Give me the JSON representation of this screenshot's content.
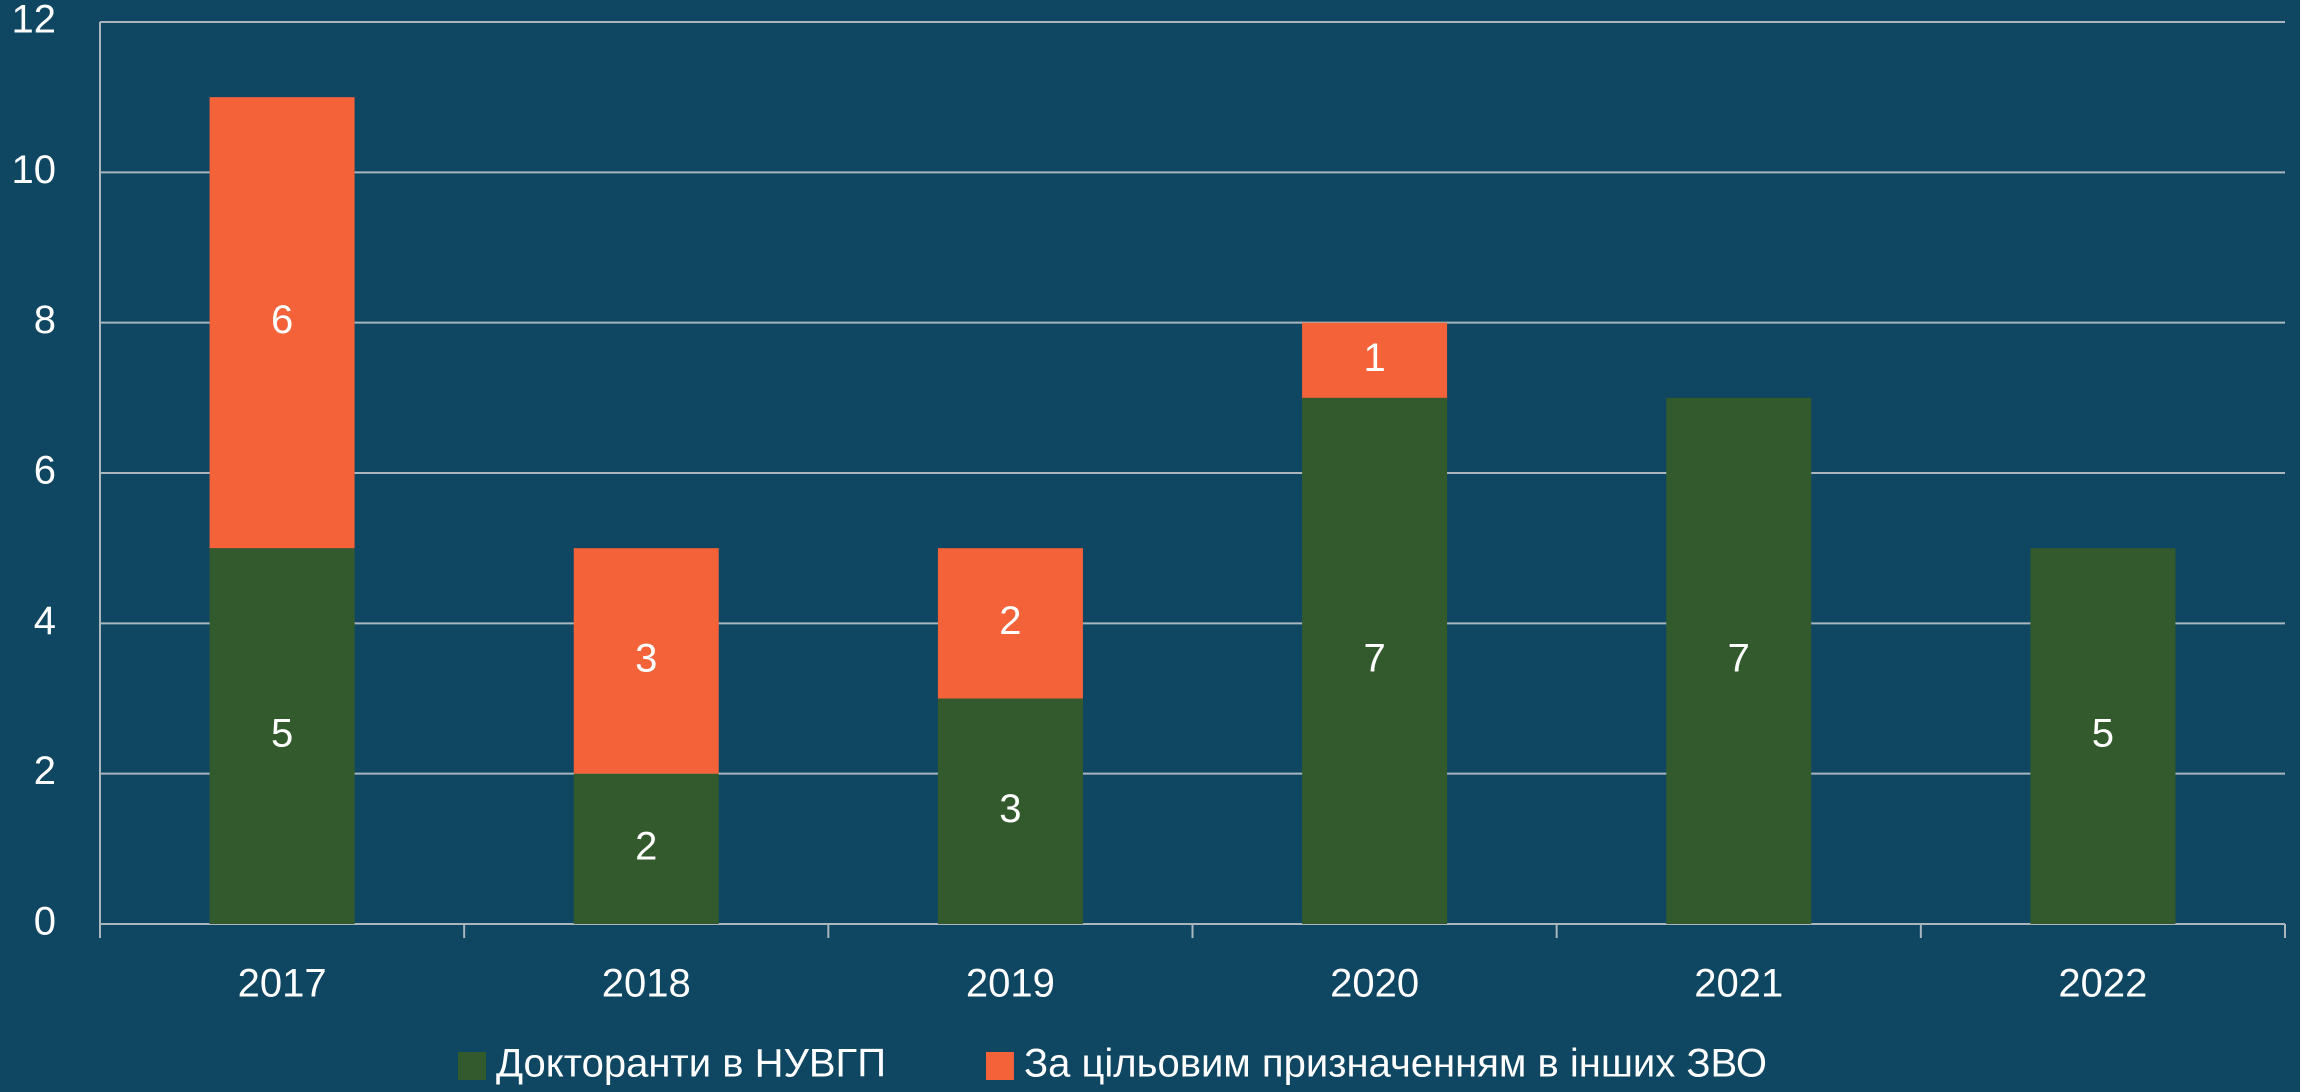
{
  "chart_data": {
    "type": "stacked_bar",
    "categories": [
      "2017",
      "2018",
      "2019",
      "2020",
      "2021",
      "2022"
    ],
    "series": [
      {
        "name": "Докторанти в НУВГП",
        "color": "#335a2c",
        "values": [
          5,
          2,
          3,
          7,
          7,
          5
        ]
      },
      {
        "name": "За цільовим призначенням в інших ЗВО",
        "color": "#f4623a",
        "values": [
          6,
          3,
          2,
          1,
          0,
          0
        ]
      }
    ],
    "ylim": [
      0,
      12
    ],
    "yticks": [
      0,
      2,
      4,
      6,
      8,
      10,
      12
    ],
    "grid": true,
    "legend": "bottom"
  }
}
